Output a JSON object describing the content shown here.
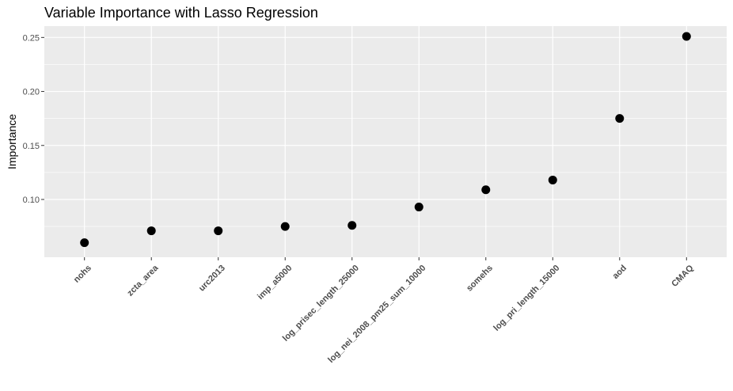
{
  "chart_data": {
    "type": "scatter",
    "title": "Variable Importance with Lasso Regression",
    "xlabel": "",
    "ylabel": "Importance",
    "categories": [
      "nohs",
      "zcta_area",
      "urc2013",
      "imp_a5000",
      "log_prisec_length_25000",
      "log_nei_2008_pm25_sum_10000",
      "somehs",
      "log_pri_length_15000",
      "aod",
      "CMAQ"
    ],
    "values": [
      0.06,
      0.071,
      0.071,
      0.075,
      0.076,
      0.093,
      0.109,
      0.118,
      0.175,
      0.251
    ],
    "ylim": [
      0.0465,
      0.2605
    ],
    "yticks": [
      0.1,
      0.15,
      0.2,
      0.25
    ],
    "ytick_labels": [
      "0.10",
      "0.15",
      "0.20",
      "0.25"
    ],
    "grid": true,
    "panel_color": "#ebebeb",
    "grid_color": "#ffffff",
    "point_color": "#000000"
  }
}
